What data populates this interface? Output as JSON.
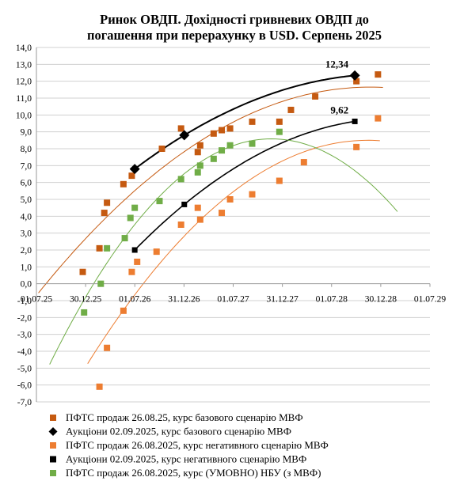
{
  "chart_data": {
    "type": "scatter",
    "title": [
      "Ринок ОВДП. Дохідності  гривневих ОВДП до",
      "погашення при перерахунку в USD. Серпень 2025"
    ],
    "xlabel": "",
    "ylabel": "",
    "x_ticks": [
      "01.07.25",
      "30.12.25",
      "01.07.26",
      "31.12.26",
      "01.07.27",
      "31.12.27",
      "01.07.28",
      "30.12.28",
      "01.07.29"
    ],
    "xlim": [
      "2025-07-01",
      "2029-07-01"
    ],
    "y_ticks": [
      "-7,0",
      "-6,0",
      "-5,0",
      "-4,0",
      "-3,0",
      "-2,0",
      "-1,0",
      "0,0",
      "1,0",
      "2,0",
      "3,0",
      "4,0",
      "5,0",
      "6,0",
      "7,0",
      "8,0",
      "9,0",
      "10,0",
      "11,0",
      "12,0",
      "13,0",
      "14,0"
    ],
    "ylim": [
      -7,
      14
    ],
    "grid": "horizontal",
    "legend_position": "bottom",
    "annotations": [
      {
        "text": "12,34",
        "x": "2028-09-25",
        "y": 12.34
      },
      {
        "text": "9,62",
        "x": "2028-09-25",
        "y": 9.62
      }
    ],
    "series": [
      {
        "name": "ПФТС продаж 26.08.25, курс базового сценарію МВФ",
        "marker": "square",
        "color": "#C55A11",
        "x": [
          "2025-12-20",
          "2026-02-20",
          "2026-03-10",
          "2026-03-20",
          "2026-05-20",
          "2026-06-20",
          "2026-10-10",
          "2026-12-20",
          "2027-02-20",
          "2027-03-01",
          "2027-04-20",
          "2027-05-20",
          "2027-06-20",
          "2027-09-10",
          "2027-12-20",
          "2028-02-01",
          "2028-05-01",
          "2028-10-01",
          "2028-12-20"
        ],
        "y": [
          0.7,
          2.1,
          4.2,
          4.8,
          5.9,
          6.4,
          8.0,
          9.2,
          7.8,
          8.2,
          8.9,
          9.1,
          9.2,
          9.6,
          9.6,
          10.3,
          11.1,
          12.0,
          12.4
        ]
      },
      {
        "name": "Аукціони 02.09.2025, курс базового сценарію МВФ",
        "marker": "diamond",
        "color": "#000000",
        "x": [
          "2026-07-01",
          "2027-01-01",
          "2028-09-25"
        ],
        "y": [
          6.8,
          8.8,
          12.34
        ]
      },
      {
        "name": "ПФТС продаж 26.08.2025, курс негативного сценарію МВФ",
        "marker": "square",
        "color": "#ED7D31",
        "x": [
          "2026-02-20",
          "2026-03-20",
          "2026-05-20",
          "2026-06-20",
          "2026-07-10",
          "2026-09-20",
          "2026-12-20",
          "2027-02-20",
          "2027-03-01",
          "2027-05-20",
          "2027-06-20",
          "2027-09-10",
          "2027-12-20",
          "2028-03-20",
          "2028-10-01",
          "2028-12-20"
        ],
        "y": [
          -6.1,
          -3.8,
          -1.6,
          0.7,
          1.3,
          1.9,
          3.5,
          4.5,
          3.8,
          4.2,
          5.0,
          5.3,
          6.1,
          7.2,
          8.1,
          9.8
        ]
      },
      {
        "name": "Аукціони 02.09.2025, курс негативного сценарію МВФ",
        "marker": "square",
        "color": "#000000",
        "x": [
          "2026-07-01",
          "2027-01-01",
          "2028-09-25"
        ],
        "y": [
          2.0,
          4.7,
          9.62
        ]
      },
      {
        "name": "ПФТС продаж 26.08.2025, курс (УМОВНО) НБУ (з МВФ)",
        "marker": "square",
        "color": "#70AD47",
        "x": [
          "2025-12-25",
          "2026-02-25",
          "2026-03-20",
          "2026-05-25",
          "2026-06-15",
          "2026-07-01",
          "2026-10-01",
          "2026-12-20",
          "2027-02-20",
          "2027-03-01",
          "2027-04-20",
          "2027-05-20",
          "2027-06-20",
          "2027-09-10",
          "2027-12-20"
        ],
        "y": [
          -1.7,
          0.0,
          2.1,
          2.7,
          3.9,
          4.5,
          4.9,
          6.2,
          6.6,
          7.0,
          7.4,
          7.9,
          8.2,
          8.3,
          9.0
        ]
      }
    ]
  }
}
